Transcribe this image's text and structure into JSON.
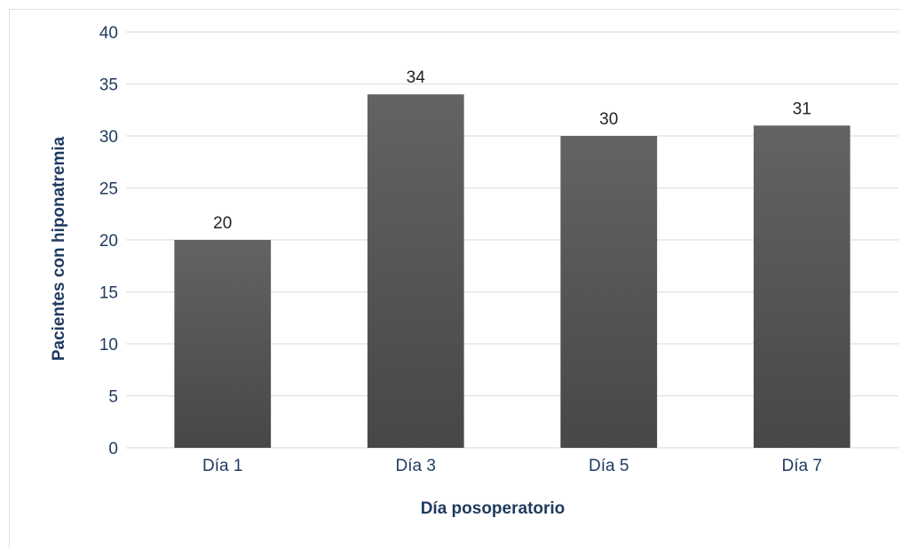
{
  "chart_data": {
    "type": "bar",
    "categories": [
      "Día 1",
      "Día 3",
      "Día 5",
      "Día 7"
    ],
    "values": [
      20,
      34,
      30,
      31
    ],
    "data_labels": [
      "20",
      "34",
      "30",
      "31"
    ],
    "xlabel": "Día posoperatorio",
    "ylabel": "Pacientes con hiponatremia",
    "ylim": [
      0,
      40
    ],
    "yticks": [
      0,
      5,
      10,
      15,
      20,
      25,
      30,
      35,
      40
    ],
    "grid": true,
    "legend": "none",
    "bar_color_top": "#636363",
    "bar_color_bottom": "#474747",
    "text_color": "#1f3a5f",
    "grid_color": "#d9e1ea"
  }
}
